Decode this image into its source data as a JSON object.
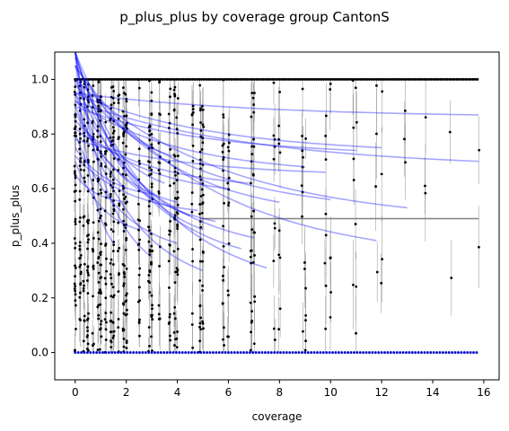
{
  "chart_data": {
    "type": "scatter",
    "title": "p_plus_plus by coverage group CantonS",
    "xlabel": "coverage",
    "ylabel": "p_plus_plus",
    "xlim": [
      -0.8,
      16.6
    ],
    "ylim": [
      -0.1,
      1.1
    ],
    "xticks": [
      "0",
      "2",
      "4",
      "6",
      "8",
      "10",
      "12",
      "14",
      "16"
    ],
    "yticks": [
      "0.0",
      "0.2",
      "0.4",
      "0.6",
      "0.8",
      "1.0"
    ],
    "grid": false,
    "legend": "none",
    "colors": {
      "points": "#000000",
      "zero_points": "#0000cc",
      "fit_lines": "#0000ff",
      "mean_line": "#808080",
      "error_bars": "#a0a0a0"
    },
    "reference_line": {
      "y": 0.49,
      "x_range": [
        4.9,
        15.8
      ]
    },
    "fit_curves": [
      {
        "x0": 0.0,
        "x1": 15.8,
        "y0": 0.95,
        "y1": 0.87
      },
      {
        "x0": 0.0,
        "x1": 15.8,
        "y0": 0.92,
        "y1": 0.7
      },
      {
        "x0": 0.0,
        "x1": 12.0,
        "y0": 0.95,
        "y1": 0.75
      },
      {
        "x0": 0.0,
        "x1": 13.0,
        "y0": 1.0,
        "y1": 0.53
      },
      {
        "x0": 0.0,
        "x1": 11.8,
        "y0": 1.05,
        "y1": 0.41
      },
      {
        "x0": 0.0,
        "x1": 10.0,
        "y0": 0.98,
        "y1": 0.56
      },
      {
        "x0": 0.0,
        "x1": 11.0,
        "y0": 0.9,
        "y1": 0.74
      },
      {
        "x0": 0.0,
        "x1": 9.0,
        "y0": 0.92,
        "y1": 0.68
      },
      {
        "x0": 0.0,
        "x1": 8.0,
        "y0": 1.05,
        "y1": 0.55
      },
      {
        "x0": 0.0,
        "x1": 7.5,
        "y0": 1.08,
        "y1": 0.31
      },
      {
        "x0": 0.0,
        "x1": 7.0,
        "y0": 0.95,
        "y1": 0.42
      },
      {
        "x0": 0.0,
        "x1": 6.5,
        "y0": 1.0,
        "y1": 0.38
      },
      {
        "x0": 0.0,
        "x1": 6.0,
        "y0": 0.85,
        "y1": 0.6
      },
      {
        "x0": 0.0,
        "x1": 5.0,
        "y0": 1.1,
        "y1": 0.45
      },
      {
        "x0": 0.0,
        "x1": 5.0,
        "y0": 0.95,
        "y1": 0.3
      },
      {
        "x0": 0.0,
        "x1": 4.5,
        "y0": 1.1,
        "y1": 0.5
      },
      {
        "x0": 0.0,
        "x1": 4.0,
        "y0": 0.9,
        "y1": 0.55
      },
      {
        "x0": 0.0,
        "x1": 4.0,
        "y0": 0.8,
        "y1": 0.4
      },
      {
        "x0": 0.0,
        "x1": 3.5,
        "y0": 1.05,
        "y1": 0.62
      },
      {
        "x0": 0.0,
        "x1": 3.0,
        "y0": 0.75,
        "y1": 0.58
      },
      {
        "x0": 0.0,
        "x1": 3.0,
        "y0": 1.1,
        "y1": 0.35
      },
      {
        "x0": 0.0,
        "x1": 2.5,
        "y0": 0.7,
        "y1": 0.45
      },
      {
        "x0": 0.0,
        "x1": 2.0,
        "y0": 1.1,
        "y1": 0.6
      },
      {
        "x0": 0.0,
        "x1": 2.0,
        "y0": 0.65,
        "y1": 0.55
      },
      {
        "x0": 0.0,
        "x1": 1.5,
        "y0": 1.1,
        "y1": 0.4
      },
      {
        "x0": 0.0,
        "x1": 5.5,
        "y0": 0.88,
        "y1": 0.48
      },
      {
        "x0": 0.0,
        "x1": 6.8,
        "y0": 0.82,
        "y1": 0.62
      },
      {
        "x0": 0.0,
        "x1": 9.8,
        "y0": 0.78,
        "y1": 0.66
      },
      {
        "x0": 0.0,
        "x1": 4.8,
        "y0": 0.72,
        "y1": 0.52
      },
      {
        "x0": 0.0,
        "x1": 3.8,
        "y0": 1.1,
        "y1": 0.72
      }
    ],
    "columns": [
      {
        "x": 0.0,
        "n": 46
      },
      {
        "x": 0.2,
        "n": 38
      },
      {
        "x": 0.35,
        "n": 28
      },
      {
        "x": 0.5,
        "n": 40
      },
      {
        "x": 0.7,
        "n": 26
      },
      {
        "x": 0.9,
        "n": 34
      },
      {
        "x": 1.0,
        "n": 40
      },
      {
        "x": 1.2,
        "n": 24
      },
      {
        "x": 1.4,
        "n": 30
      },
      {
        "x": 1.5,
        "n": 36
      },
      {
        "x": 1.7,
        "n": 22
      },
      {
        "x": 1.9,
        "n": 38
      },
      {
        "x": 2.0,
        "n": 34
      },
      {
        "x": 2.5,
        "n": 24
      },
      {
        "x": 2.9,
        "n": 32
      },
      {
        "x": 3.0,
        "n": 28
      },
      {
        "x": 3.3,
        "n": 18
      },
      {
        "x": 3.7,
        "n": 22
      },
      {
        "x": 3.9,
        "n": 28
      },
      {
        "x": 4.0,
        "n": 24
      },
      {
        "x": 4.6,
        "n": 16
      },
      {
        "x": 4.9,
        "n": 28
      },
      {
        "x": 5.0,
        "n": 22
      },
      {
        "x": 5.8,
        "n": 20
      },
      {
        "x": 6.0,
        "n": 14
      },
      {
        "x": 6.9,
        "n": 18
      },
      {
        "x": 7.0,
        "n": 16
      },
      {
        "x": 7.8,
        "n": 10
      },
      {
        "x": 8.0,
        "n": 10
      },
      {
        "x": 8.9,
        "n": 9
      },
      {
        "x": 9.0,
        "n": 8
      },
      {
        "x": 9.8,
        "n": 8
      },
      {
        "x": 10.0,
        "n": 6
      },
      {
        "x": 10.9,
        "n": 5
      },
      {
        "x": 11.0,
        "n": 5
      },
      {
        "x": 11.8,
        "n": 4
      },
      {
        "x": 12.0,
        "n": 4
      },
      {
        "x": 12.9,
        "n": 3
      },
      {
        "x": 13.7,
        "n": 3
      },
      {
        "x": 14.7,
        "n": 2
      },
      {
        "x": 15.8,
        "n": 2
      }
    ],
    "ones_rows": [
      {
        "x_from": 0.0,
        "x_to": 15.8,
        "y": 1.0
      }
    ],
    "zeros_rows": [
      {
        "x_from": 0.0,
        "x_to": 15.8,
        "y": 0.0
      }
    ]
  }
}
